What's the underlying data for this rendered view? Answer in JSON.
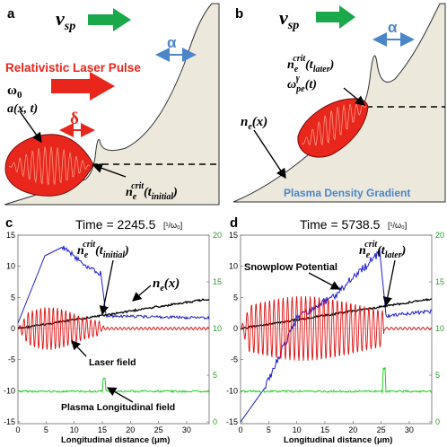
{
  "panels": {
    "a": {
      "letter": "a",
      "vsp": "v",
      "vsp_sub": "sp",
      "alpha": "α",
      "pulse_title": "Relativistic Laser Pulse",
      "omega": "ω",
      "omega_sub": "0",
      "field_a": "a(x, t)",
      "delta": "δ",
      "ne_crit": "n",
      "ne_sub": "e",
      "ne_sup": "crit",
      "ne_arg": "(t",
      "ne_arg_sub": "initial",
      "ne_close": ")"
    },
    "b": {
      "letter": "b",
      "vsp": "v",
      "vsp_sub": "sp",
      "alpha": "α",
      "ne_crit": "n",
      "ne_sub": "e",
      "ne_sup": "crit",
      "ne_arg": "(t",
      "ne_arg_sub": "later",
      "ne_close": ")",
      "omega_pe": "ω",
      "omega_pe_sub": "pe",
      "omega_pe_sup": "γ",
      "omega_pe_arg": "(t)",
      "ne_x": "n",
      "ne_x_sub": "e",
      "ne_x_arg": "(x)",
      "gradient_label": "Plasma Density Gradient"
    },
    "c": {
      "letter": "c",
      "time_label": "Time = 2245.5",
      "time_unit": "[¹/ω₀]",
      "ne_crit": "n",
      "ne_sub": "e",
      "ne_sup": "crit",
      "ne_arg": "(t",
      "ne_arg_sub": "initial",
      "ne_close": ")",
      "ne_x": "n",
      "ne_x_sub": "e",
      "ne_x_arg": "(x)",
      "laser_field": "Laser field",
      "long_field": "Plasma Longitudinal field",
      "xlabel": "Longitudinal    distance  (μm)"
    },
    "d": {
      "letter": "d",
      "time_label": "Time = 5738.5",
      "time_unit": "[¹/ω₀]",
      "ne_crit": "n",
      "ne_sub": "e",
      "ne_sup": "crit",
      "ne_arg": "(t",
      "ne_arg_sub": "later",
      "ne_close": ")",
      "snowplow": "Snowplow Potential",
      "xlabel": "Longitudinal    distance  (μm)"
    }
  },
  "axes": {
    "left_ticks": [
      "15",
      "10",
      "5",
      "0",
      "-5",
      "-10",
      "-15"
    ],
    "right_ticks": [
      "20",
      "15",
      "10",
      "5",
      "0"
    ],
    "x_ticks": [
      "0",
      "5",
      "10",
      "15",
      "20",
      "25",
      "30"
    ]
  },
  "colors": {
    "green_arrow": "#1aa84a",
    "red_pulse": "#e8261c",
    "blue_label": "#4a86c8",
    "plasma_fill": "#ede8dc",
    "density_blue": "#1a1ad0",
    "laser_red": "#e01010",
    "long_green": "#22cc22",
    "black_ne": "#000000",
    "right_axis_green": "#2a9a2a"
  }
}
